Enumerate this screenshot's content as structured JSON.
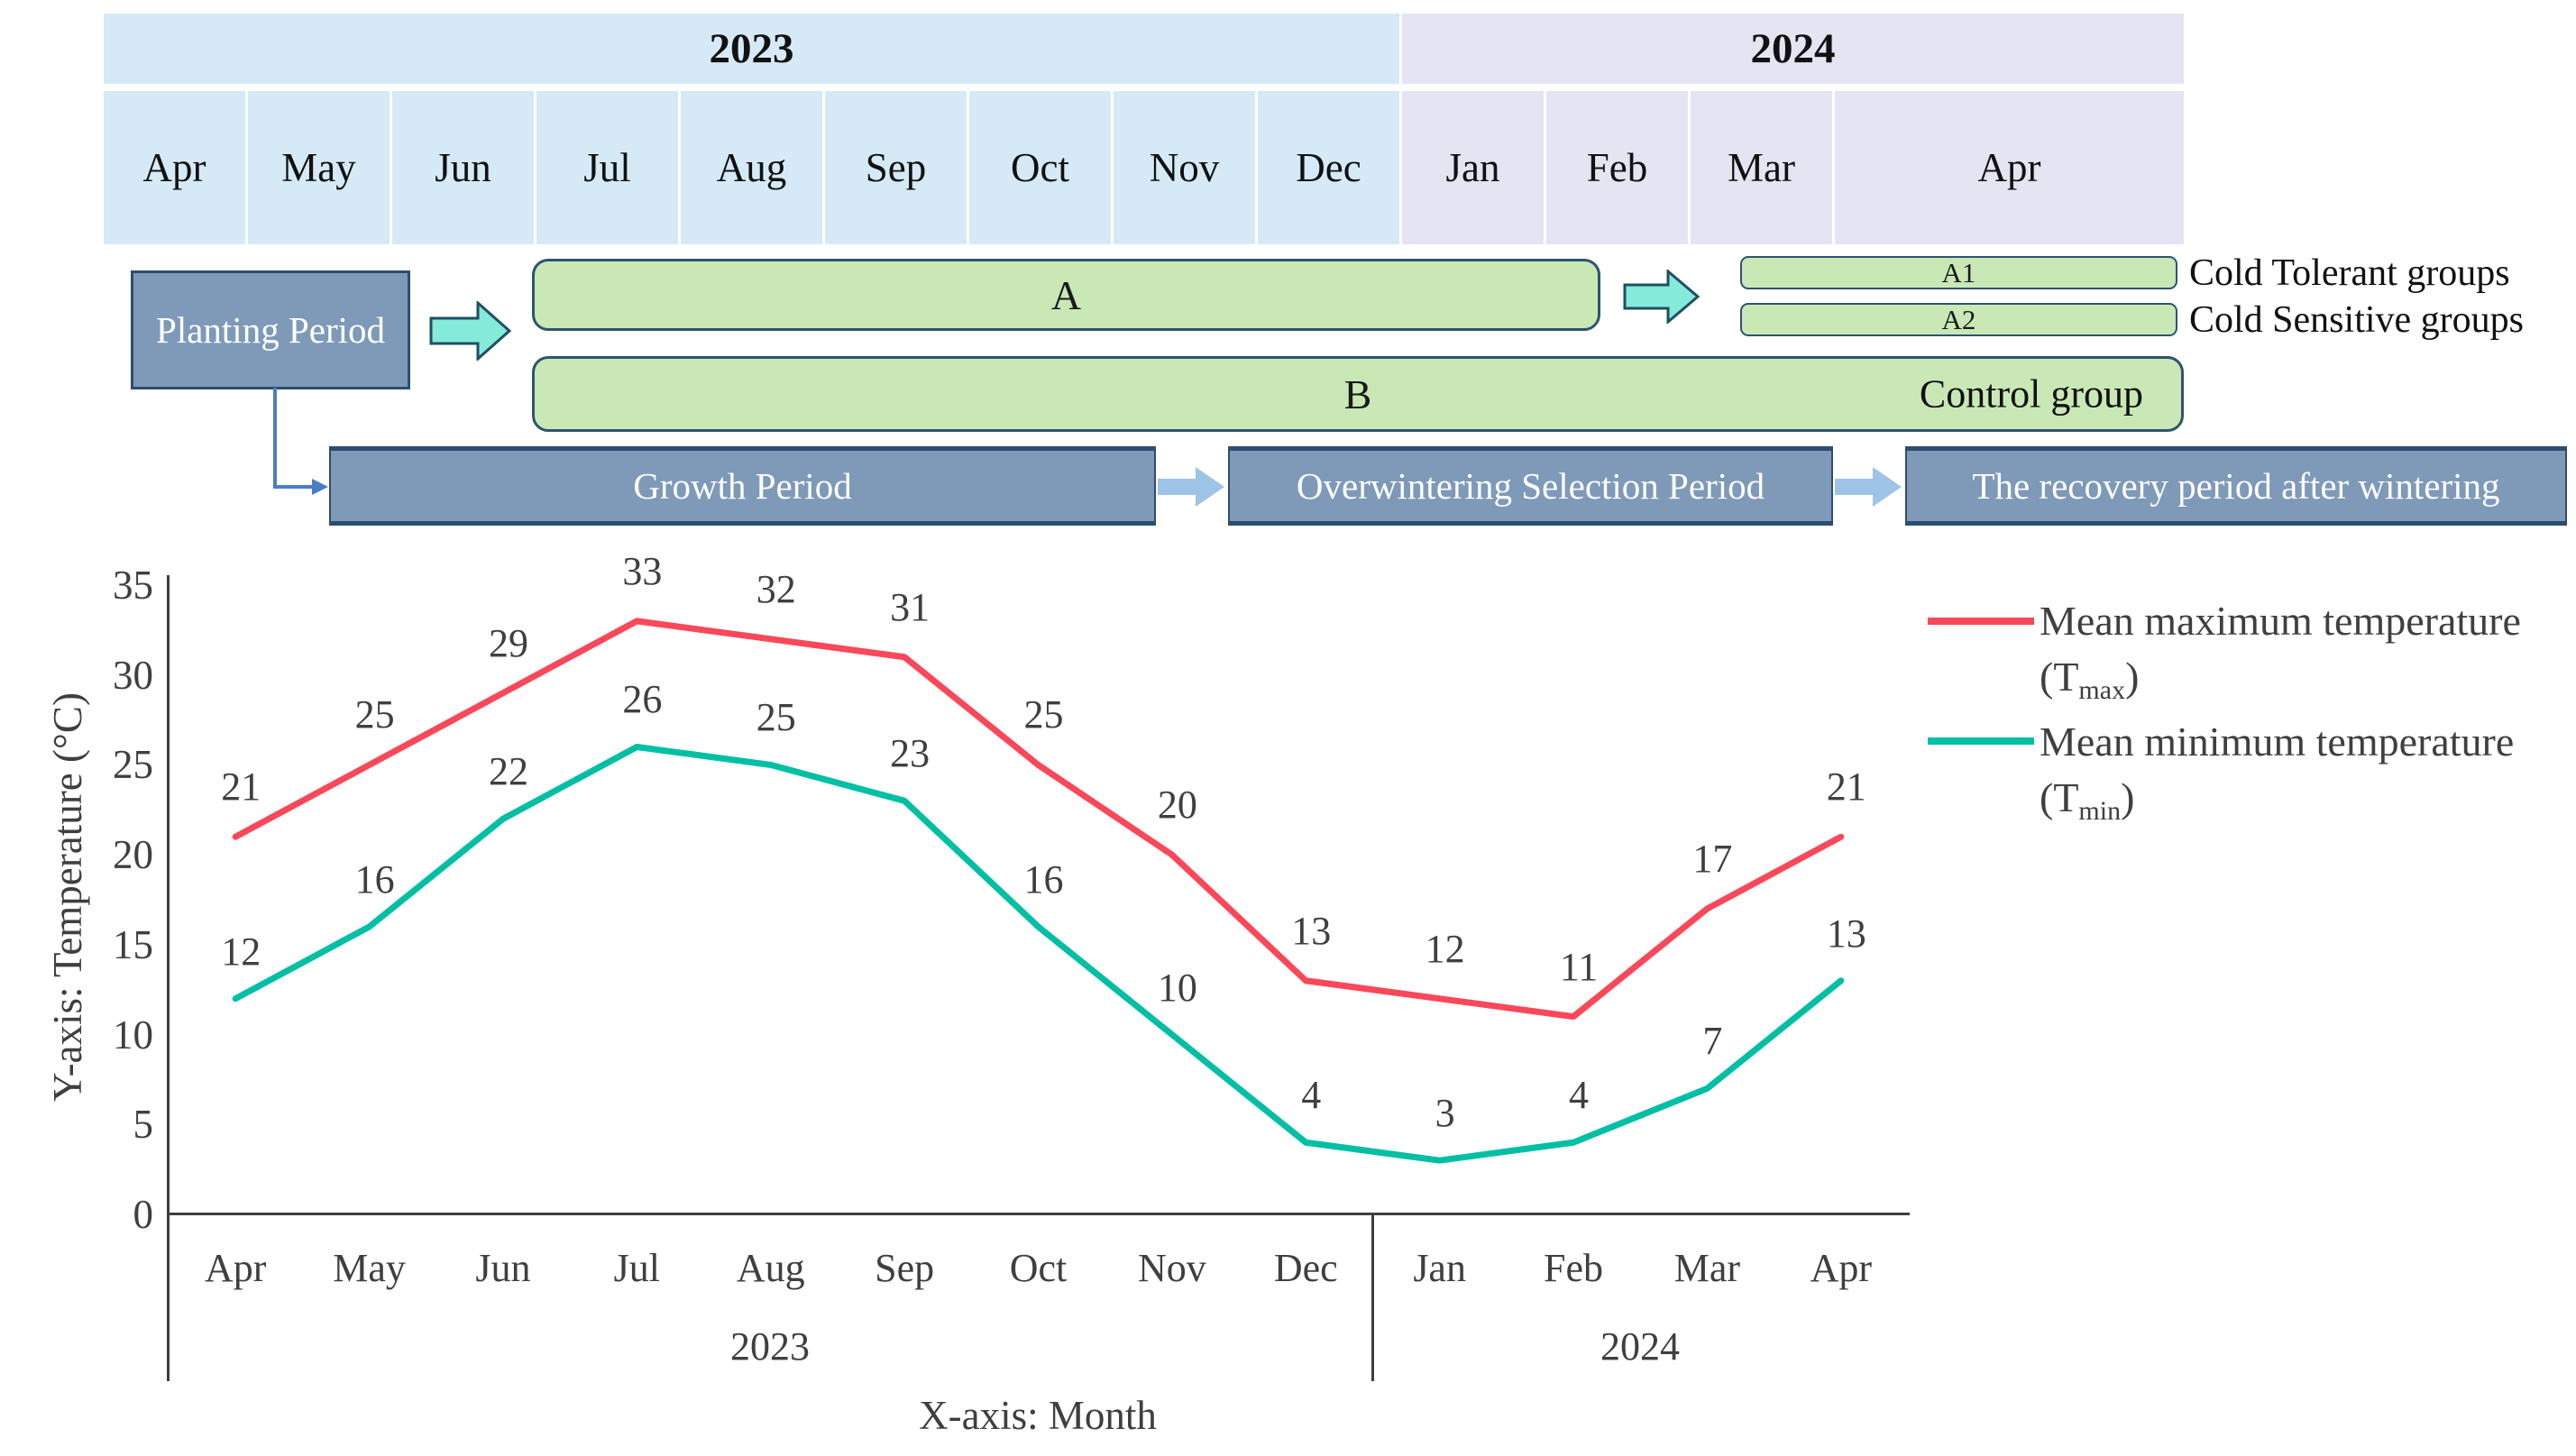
{
  "colors": {
    "timeline_2023_bg": "#d5eaf6",
    "timeline_2024_bg": "#e5e4f3",
    "bar_green_fill": "#c9e8b6",
    "bar_green_border": "#2e546e",
    "slate_fill": "#7e9ab8",
    "slate_border": "#2e4d6e",
    "cyan_arrow_fill": "#84ead9",
    "cyan_arrow_border": "#1f4f63",
    "flow_arrow": "#9dc3e6",
    "connector_blue": "#4a7cc9",
    "axis_line": "#3f3f3f"
  },
  "timeline": {
    "years": [
      {
        "label": "2023"
      },
      {
        "label": "2024"
      }
    ],
    "months": [
      {
        "label": "Apr",
        "year": "2023"
      },
      {
        "label": "May",
        "year": "2023"
      },
      {
        "label": "Jun",
        "year": "2023"
      },
      {
        "label": "Jul",
        "year": "2023"
      },
      {
        "label": "Aug",
        "year": "2023"
      },
      {
        "label": "Sep",
        "year": "2023"
      },
      {
        "label": "Oct",
        "year": "2023"
      },
      {
        "label": "Nov",
        "year": "2023"
      },
      {
        "label": "Dec",
        "year": "2023"
      },
      {
        "label": "Jan",
        "year": "2024"
      },
      {
        "label": "Feb",
        "year": "2024"
      },
      {
        "label": "Mar",
        "year": "2024"
      },
      {
        "label": "Apr",
        "year": "2024",
        "wide": true
      }
    ]
  },
  "gantt": {
    "planting_label": "Planting Period",
    "group_a_label": "A",
    "group_a1_label": "A1",
    "group_a2_label": "A2",
    "group_b_label": "B",
    "control_group_label": "Control group",
    "cold_tolerant_label": "Cold Tolerant groups",
    "cold_sensitive_label": "Cold Sensitive groups",
    "periods": [
      {
        "label": "Growth Period"
      },
      {
        "label": "Overwintering Selection Period"
      },
      {
        "label": "The recovery period after wintering"
      }
    ]
  },
  "chart_data": {
    "type": "line",
    "categories": [
      "Apr",
      "May",
      "Jun",
      "Jul",
      "Aug",
      "Sep",
      "Oct",
      "Nov",
      "Dec",
      "Jan",
      "Feb",
      "Mar",
      "Apr"
    ],
    "x_group_labels": [
      "2023",
      "2024"
    ],
    "series": [
      {
        "name": "Mean maximum temperature (Tmax)",
        "color": "#f9485a",
        "values": [
          21,
          25,
          29,
          33,
          32,
          31,
          25,
          20,
          13,
          12,
          11,
          17,
          21
        ]
      },
      {
        "name": "Mean minimum temperature (Tmin)",
        "color": "#00bfa4",
        "values": [
          12,
          16,
          22,
          26,
          25,
          23,
          16,
          10,
          4,
          3,
          4,
          7,
          13
        ]
      }
    ],
    "xlabel": "X-axis: Month",
    "ylabel": "Y-axis: Temperature (°C)",
    "ylim": [
      0,
      35
    ],
    "ytick_step": 5,
    "grid": "off",
    "data_labels": "on",
    "legend": {
      "position": "right",
      "items": [
        {
          "main": "Mean maximum temperature",
          "sym_pre": "(T",
          "sym_sub": "max",
          "sym_post": ")"
        },
        {
          "main": "Mean minimum temperature",
          "sym_pre": "(T",
          "sym_sub": "min",
          "sym_post": ")"
        }
      ]
    }
  }
}
